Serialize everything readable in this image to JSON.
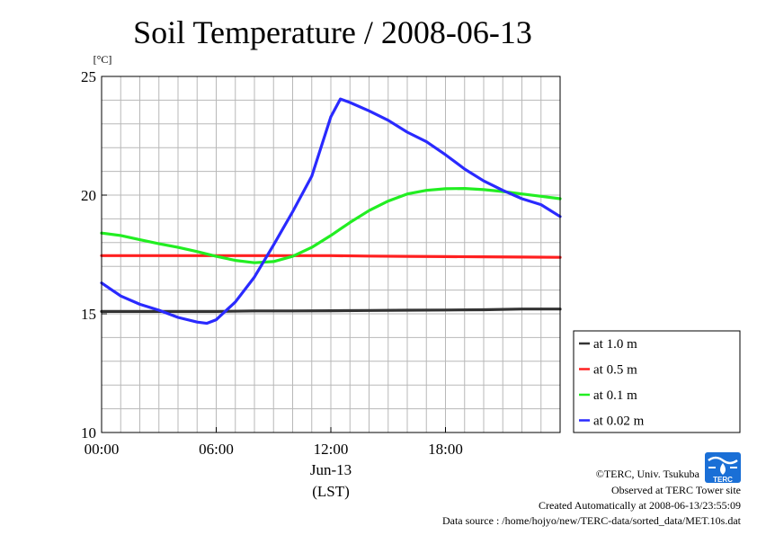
{
  "chart_data": {
    "type": "line",
    "title": "Soil Temperature / 2008-06-13",
    "ylabel": "[°C]",
    "ylim": [
      10,
      25
    ],
    "yticks": [
      "10",
      "15",
      "20",
      "25"
    ],
    "xlim": [
      0,
      24
    ],
    "xticks": [
      "00:00",
      "06:00",
      "12:00",
      "18:00"
    ],
    "xdate_label": "Jun-13",
    "xunit_label": "(LST)",
    "grid": true,
    "legend_position": "right-bottom",
    "series": [
      {
        "name": "at 1.0 m",
        "color": "#333333",
        "x": [
          0,
          2,
          4,
          6,
          8,
          10,
          12,
          14,
          16,
          18,
          20,
          22,
          24
        ],
        "values": [
          15.1,
          15.1,
          15.1,
          15.1,
          15.12,
          15.12,
          15.13,
          15.14,
          15.15,
          15.16,
          15.17,
          15.2,
          15.2
        ]
      },
      {
        "name": "at 0.5 m",
        "color": "#ff2020",
        "x": [
          0,
          2,
          4,
          6,
          8,
          10,
          12,
          14,
          16,
          18,
          20,
          22,
          24
        ],
        "values": [
          17.45,
          17.45,
          17.45,
          17.45,
          17.45,
          17.45,
          17.45,
          17.43,
          17.42,
          17.41,
          17.4,
          17.39,
          17.38
        ]
      },
      {
        "name": "at 0.1 m",
        "color": "#22ee22",
        "x": [
          0,
          1,
          2,
          3,
          4,
          5,
          6,
          7,
          8,
          9,
          10,
          11,
          12,
          13,
          14,
          15,
          16,
          17,
          18,
          19,
          20,
          21,
          22,
          23,
          24
        ],
        "values": [
          18.4,
          18.3,
          18.12,
          17.95,
          17.8,
          17.62,
          17.42,
          17.25,
          17.15,
          17.2,
          17.42,
          17.8,
          18.3,
          18.85,
          19.35,
          19.75,
          20.05,
          20.2,
          20.27,
          20.28,
          20.23,
          20.15,
          20.05,
          19.95,
          19.85
        ]
      },
      {
        "name": "at 0.02 m",
        "color": "#2a2aff",
        "x": [
          0,
          1,
          2,
          3,
          4,
          5,
          5.5,
          6,
          7,
          8,
          9,
          10,
          11,
          12,
          12.5,
          13,
          14,
          15,
          16,
          17,
          18,
          19,
          20,
          21,
          22,
          23,
          24
        ],
        "values": [
          16.3,
          15.75,
          15.4,
          15.15,
          14.85,
          14.65,
          14.6,
          14.75,
          15.5,
          16.55,
          17.9,
          19.3,
          20.8,
          23.3,
          24.05,
          23.9,
          23.55,
          23.15,
          22.65,
          22.25,
          21.7,
          21.1,
          20.6,
          20.2,
          19.85,
          19.6,
          19.1
        ]
      }
    ]
  },
  "footer": {
    "copyright": "©TERC, Univ. Tsukuba",
    "observed": "Observed at TERC Tower site",
    "created": "Created Automatically at 2008-06-13/23:55:09",
    "source": "Data source : /home/hojyo/new/TERC-data/sorted_data/MET.10s.dat"
  },
  "logo": {
    "text": "TERC",
    "color": "#1a6fd6"
  }
}
